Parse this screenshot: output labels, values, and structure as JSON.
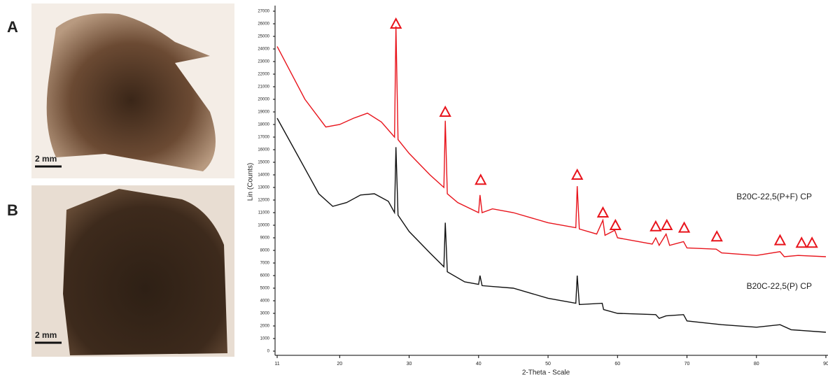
{
  "figure_panels": [
    {
      "label": "A",
      "scale": "2 mm"
    },
    {
      "label": "B",
      "scale": "2 mm"
    }
  ],
  "chart_data": {
    "type": "line",
    "x_label": "2-Theta - Scale",
    "y_label": "Lin (Counts)",
    "xlim": [
      11,
      90
    ],
    "xticks": [
      11,
      20,
      30,
      40,
      50,
      60,
      70,
      80,
      90
    ],
    "ylim": [
      0,
      27000
    ],
    "yticks": [
      0,
      1000,
      2000,
      3000,
      4000,
      5000,
      6000,
      7000,
      8000,
      9000,
      10000,
      11000,
      12000,
      13000,
      14000,
      15000,
      16000,
      17000,
      18000,
      19000,
      20000,
      21000,
      22000,
      23000,
      24000,
      25000,
      26000,
      27000
    ],
    "series": [
      {
        "name": "B20C-22,5(P+F) CP",
        "color": "#e8141c",
        "x": [
          11,
          15,
          18,
          20,
          22,
          24,
          26,
          27.9,
          28.1,
          28.4,
          30,
          33,
          35,
          35.2,
          35.5,
          37,
          40,
          40.2,
          40.5,
          42,
          45,
          50,
          54,
          54.2,
          54.5,
          57,
          57.9,
          58.2,
          59.6,
          60,
          65,
          65.5,
          66,
          67,
          67.5,
          69.5,
          70,
          74.2,
          75,
          80,
          83.4,
          84,
          86,
          90
        ],
        "values": [
          24200,
          20000,
          17800,
          18000,
          18500,
          18900,
          18200,
          17000,
          25800,
          16800,
          15700,
          14000,
          13000,
          18300,
          12500,
          11800,
          11000,
          12400,
          11000,
          11300,
          11000,
          10200,
          9800,
          13100,
          9700,
          9300,
          10400,
          9200,
          9600,
          9000,
          8500,
          9000,
          8400,
          9300,
          8400,
          8700,
          8200,
          8100,
          7800,
          7600,
          7900,
          7500,
          7600,
          7500
        ]
      },
      {
        "name": "B20C-22,5(P) CP",
        "color": "#111111",
        "x": [
          11,
          14,
          17,
          19,
          21,
          23,
          25,
          27,
          27.9,
          28.1,
          28.4,
          30,
          33,
          35,
          35.2,
          35.5,
          38,
          40,
          40.2,
          40.5,
          45,
          50,
          54,
          54.2,
          54.5,
          57.8,
          58,
          60,
          65.5,
          66,
          67,
          69.5,
          70,
          75,
          80,
          83.4,
          85,
          90
        ],
        "values": [
          18500,
          15500,
          12500,
          11500,
          11800,
          12400,
          12500,
          11900,
          11000,
          16200,
          10800,
          9500,
          7800,
          6700,
          10200,
          6300,
          5500,
          5300,
          6000,
          5200,
          5000,
          4200,
          3800,
          6000,
          3700,
          3800,
          3300,
          3000,
          2900,
          2600,
          2800,
          2900,
          2400,
          2100,
          1900,
          2100,
          1700,
          1500
        ]
      }
    ],
    "peak_markers": {
      "color": "#e8141c",
      "x": [
        28.1,
        35.2,
        40.3,
        54.2,
        57.9,
        59.7,
        65.5,
        67.1,
        69.6,
        74.3,
        83.4,
        86.5,
        88
      ],
      "y": [
        26000,
        19000,
        13600,
        14000,
        11000,
        10000,
        9900,
        10000,
        9800,
        9100,
        8800,
        8600,
        8600
      ]
    }
  }
}
